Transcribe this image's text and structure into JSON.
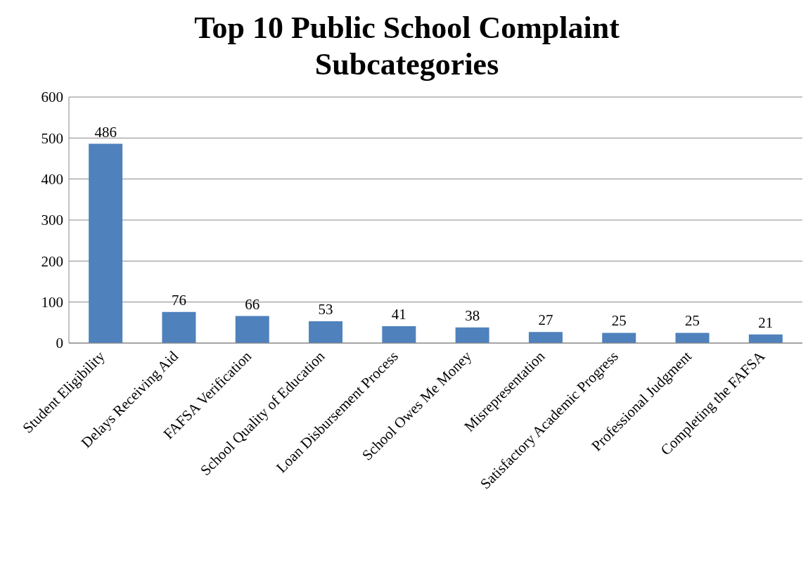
{
  "chart_data": {
    "type": "bar",
    "title": "Top 10 Public School Complaint Subcategories",
    "categories": [
      "Student Eligibility",
      "Delays Receiving Aid",
      "FAFSA Verification",
      "School Quality of Education",
      "Loan Disbursement Process",
      "School Owes Me Money",
      "Misrepresentation",
      "Satisfactory Academic Progress",
      "Professional Judgment",
      "Completing the FAFSA"
    ],
    "values": [
      486,
      76,
      66,
      53,
      41,
      38,
      27,
      25,
      25,
      21
    ],
    "color": "#4f81bd",
    "ylim": [
      0,
      600
    ],
    "yticks": [
      0,
      100,
      200,
      300,
      400,
      500,
      600
    ],
    "grid": "y",
    "data_labels": true
  }
}
